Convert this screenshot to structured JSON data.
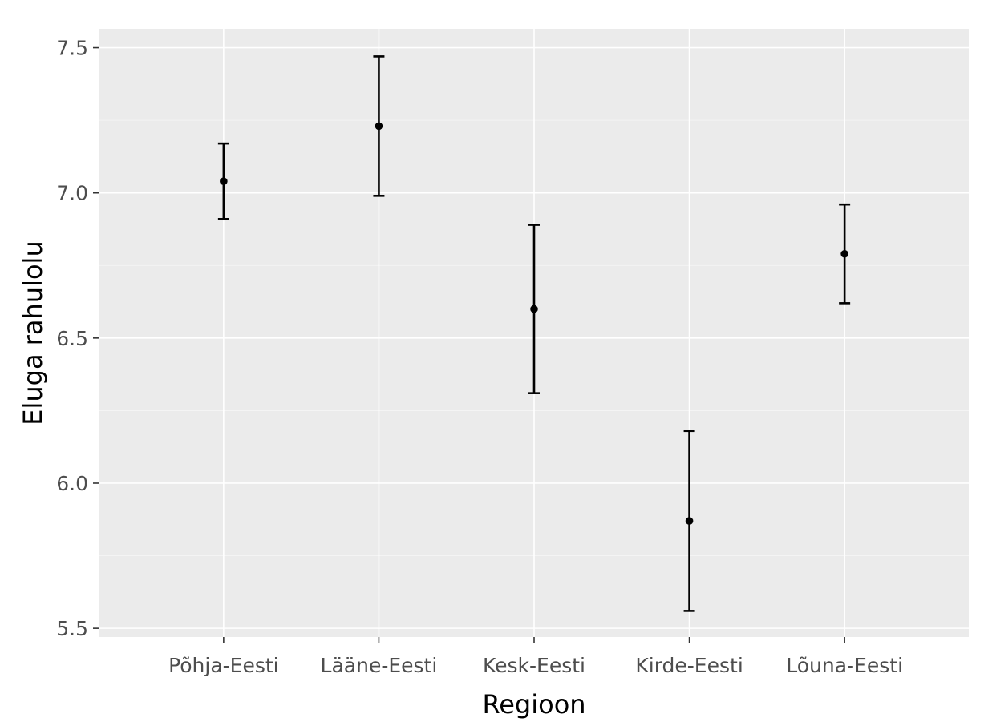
{
  "chart_data": {
    "type": "scatter",
    "subtype": "point-with-error-bars",
    "title": "",
    "xlabel": "Regioon",
    "ylabel": "Eluga rahulolu",
    "categories": [
      "Põhja-Eesti",
      "Lääne-Eesti",
      "Kesk-Eesti",
      "Kirde-Eesti",
      "Lõuna-Eesti"
    ],
    "values": [
      7.04,
      7.23,
      6.6,
      5.87,
      6.79
    ],
    "lower": [
      6.91,
      6.99,
      6.31,
      5.56,
      6.62
    ],
    "upper": [
      7.17,
      7.47,
      6.89,
      6.18,
      6.96
    ],
    "yticks": [
      5.5,
      6.0,
      6.5,
      7.0,
      7.5
    ],
    "ytick_labels": [
      "5.5",
      "6.0",
      "6.5",
      "7.0",
      "7.5"
    ],
    "ylim": [
      5.47,
      7.565
    ],
    "grid": true,
    "legend": "none",
    "colors": {
      "panel_background": "#ebebeb",
      "grid": "#ffffff",
      "points": "#000000",
      "tick_text": "#4d4d4d",
      "axis_title": "#000000"
    }
  }
}
